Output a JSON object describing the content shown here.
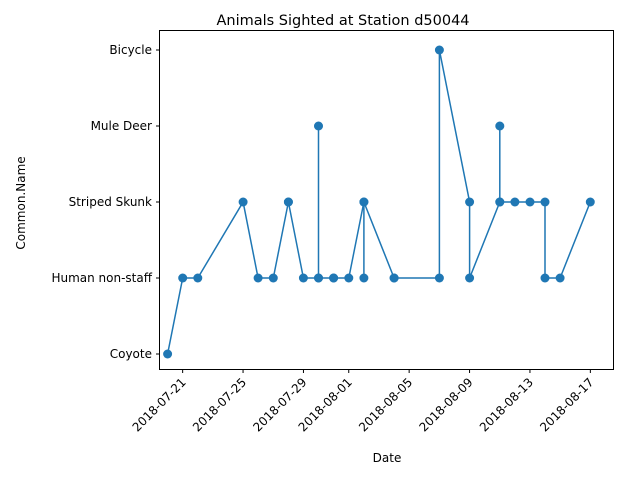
{
  "chart_data": {
    "type": "line",
    "title": "Animals Sighted at Station d50044",
    "xlabel": "Date",
    "ylabel": "Common.Name",
    "categories_y": [
      "Coyote",
      "Human non-staff",
      "Striped Skunk",
      "Mule Deer",
      "Bicycle"
    ],
    "x_ticks": [
      "2018-07-21",
      "2018-07-25",
      "2018-07-29",
      "2018-08-01",
      "2018-08-05",
      "2018-08-09",
      "2018-08-13",
      "2018-08-17"
    ],
    "x_range": [
      "2018-07-19T12:00",
      "2018-08-18T12:00"
    ],
    "grid": false,
    "marker": "circle",
    "color": "#1f77b4",
    "points": [
      {
        "x": "2018-07-20",
        "y": "Coyote"
      },
      {
        "x": "2018-07-21",
        "y": "Human non-staff"
      },
      {
        "x": "2018-07-22",
        "y": "Human non-staff"
      },
      {
        "x": "2018-07-25",
        "y": "Striped Skunk"
      },
      {
        "x": "2018-07-26",
        "y": "Human non-staff"
      },
      {
        "x": "2018-07-27",
        "y": "Human non-staff"
      },
      {
        "x": "2018-07-28",
        "y": "Striped Skunk"
      },
      {
        "x": "2018-07-28",
        "y": "Striped Skunk"
      },
      {
        "x": "2018-07-29",
        "y": "Human non-staff"
      },
      {
        "x": "2018-07-30",
        "y": "Human non-staff"
      },
      {
        "x": "2018-07-30",
        "y": "Mule Deer"
      },
      {
        "x": "2018-07-30",
        "y": "Human non-staff"
      },
      {
        "x": "2018-07-31",
        "y": "Human non-staff"
      },
      {
        "x": "2018-07-31",
        "y": "Human non-staff"
      },
      {
        "x": "2018-08-01",
        "y": "Human non-staff"
      },
      {
        "x": "2018-08-02",
        "y": "Striped Skunk"
      },
      {
        "x": "2018-08-02",
        "y": "Human non-staff"
      },
      {
        "x": "2018-08-02",
        "y": "Striped Skunk"
      },
      {
        "x": "2018-08-04",
        "y": "Human non-staff"
      },
      {
        "x": "2018-08-04",
        "y": "Human non-staff"
      },
      {
        "x": "2018-08-07",
        "y": "Human non-staff"
      },
      {
        "x": "2018-08-07",
        "y": "Bicycle"
      },
      {
        "x": "2018-08-09",
        "y": "Striped Skunk"
      },
      {
        "x": "2018-08-09",
        "y": "Human non-staff"
      },
      {
        "x": "2018-08-11",
        "y": "Striped Skunk"
      },
      {
        "x": "2018-08-11",
        "y": "Mule Deer"
      },
      {
        "x": "2018-08-11",
        "y": "Striped Skunk"
      },
      {
        "x": "2018-08-12",
        "y": "Striped Skunk"
      },
      {
        "x": "2018-08-13",
        "y": "Striped Skunk"
      },
      {
        "x": "2018-08-14",
        "y": "Striped Skunk"
      },
      {
        "x": "2018-08-14",
        "y": "Human non-staff"
      },
      {
        "x": "2018-08-15",
        "y": "Human non-staff"
      },
      {
        "x": "2018-08-17",
        "y": "Striped Skunk"
      }
    ]
  }
}
